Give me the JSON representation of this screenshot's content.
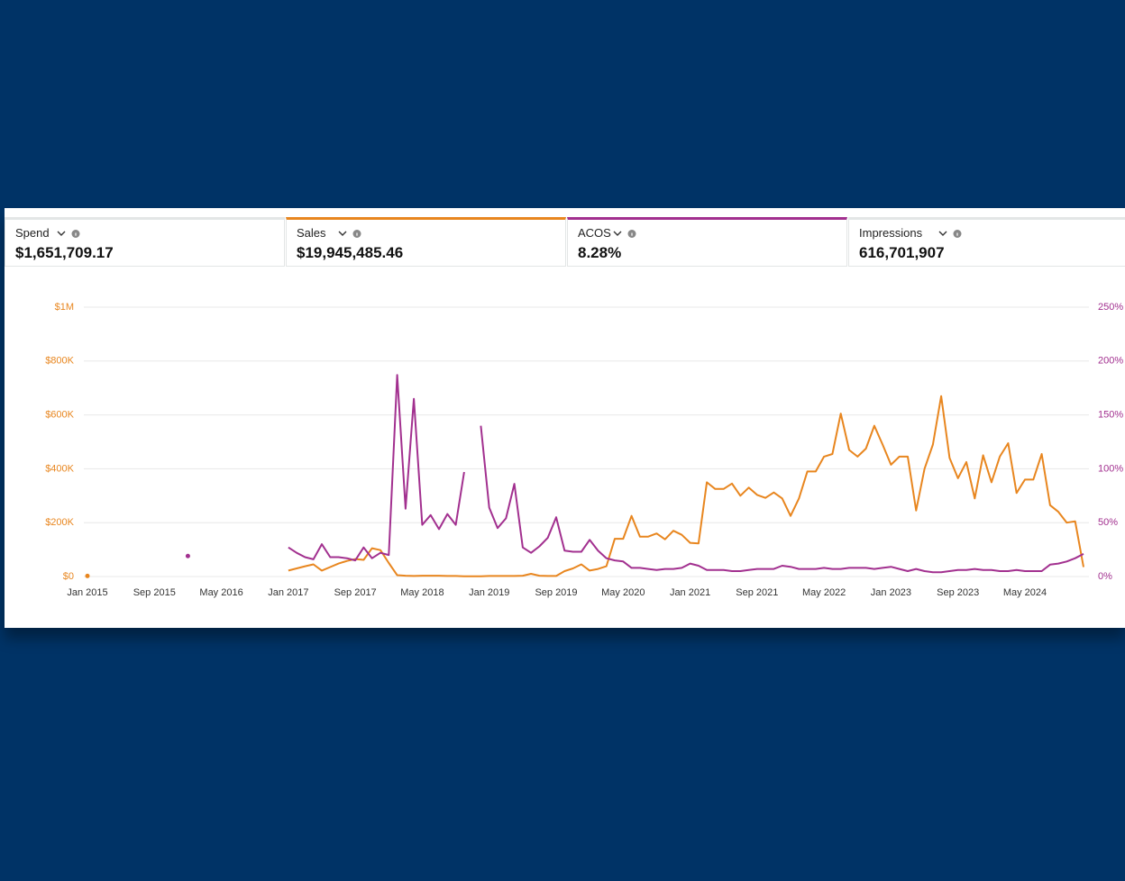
{
  "metrics": [
    {
      "label": "Spend",
      "value": "$1,651,709.17"
    },
    {
      "label": "Sales",
      "value": "$19,945,485.46",
      "color": "#e8861f"
    },
    {
      "label": "ACOS",
      "value": "8.28%",
      "color": "#a2308f"
    },
    {
      "label": "Impressions",
      "value": "616,701,907"
    }
  ],
  "chart_data": {
    "type": "line",
    "categories": [
      "Jan 2015",
      null,
      null,
      null,
      null,
      null,
      null,
      null,
      "Sep 2015",
      null,
      null,
      null,
      null,
      null,
      null,
      null,
      "May 2016",
      null,
      null,
      null,
      null,
      null,
      null,
      null,
      "Jan 2017",
      null,
      null,
      null,
      null,
      null,
      null,
      null,
      "Sep 2017",
      null,
      null,
      null,
      null,
      null,
      null,
      null,
      "May 2018",
      null,
      null,
      null,
      null,
      null,
      null,
      null,
      "Jan 2019",
      null,
      null,
      null,
      null,
      null,
      null,
      null,
      "Sep 2019",
      null,
      null,
      null,
      null,
      null,
      null,
      null,
      "May 2020",
      null,
      null,
      null,
      null,
      null,
      null,
      null,
      "Jan 2021",
      null,
      null,
      null,
      null,
      null,
      null,
      null,
      "Sep 2021",
      null,
      null,
      null,
      null,
      null,
      null,
      null,
      "May 2022",
      null,
      null,
      null,
      null,
      null,
      null,
      null,
      "Jan 2023",
      null,
      null,
      null,
      null,
      null,
      null,
      null,
      "Sep 2023",
      null,
      null,
      null,
      null,
      null,
      null,
      null,
      "May 2024",
      null,
      null,
      null,
      null,
      null,
      null,
      null
    ],
    "series": [
      {
        "name": "Sales",
        "color": "#e8861f",
        "axis": "y",
        "values": [
          2000,
          null,
          null,
          null,
          null,
          null,
          null,
          null,
          null,
          null,
          null,
          null,
          null,
          null,
          null,
          null,
          null,
          null,
          null,
          null,
          null,
          null,
          null,
          null,
          22000,
          30000,
          38000,
          45000,
          22000,
          35000,
          48000,
          58000,
          65000,
          62000,
          105000,
          98000,
          50000,
          5000,
          3000,
          2000,
          3000,
          3000,
          3000,
          2000,
          2000,
          1000,
          1000,
          1000,
          2000,
          2000,
          2000,
          2000,
          3000,
          10000,
          3000,
          2000,
          2000,
          20000,
          30000,
          45000,
          22000,
          28000,
          38000,
          140000,
          140000,
          225000,
          148000,
          148000,
          160000,
          138000,
          170000,
          155000,
          125000,
          123000,
          350000,
          325000,
          325000,
          345000,
          300000,
          330000,
          303000,
          292000,
          312000,
          290000,
          225000,
          290000,
          390000,
          390000,
          445000,
          455000,
          605000,
          470000,
          445000,
          475000,
          560000,
          490000,
          415000,
          445000,
          445000,
          245000,
          400000,
          490000,
          670000,
          440000,
          365000,
          425000,
          290000,
          450000,
          350000,
          445000,
          495000,
          310000,
          360000,
          360000,
          455000,
          265000,
          240000,
          200000,
          205000,
          35000
        ]
      },
      {
        "name": "ACOS",
        "color": "#a2308f",
        "axis": "y2",
        "values": [
          null,
          null,
          null,
          null,
          null,
          null,
          null,
          null,
          null,
          null,
          null,
          null,
          19,
          null,
          null,
          null,
          null,
          null,
          null,
          null,
          null,
          null,
          null,
          null,
          27,
          22,
          18,
          16,
          30,
          18,
          18,
          17,
          15,
          27,
          17,
          22,
          20,
          187,
          63,
          165,
          48,
          57,
          44,
          58,
          48,
          97,
          null,
          140,
          64,
          45,
          54,
          86,
          27,
          22,
          28,
          36,
          55,
          24,
          23,
          23,
          34,
          24,
          17,
          15,
          14,
          8,
          8,
          7,
          6,
          7,
          7,
          8,
          12,
          10,
          6,
          6,
          6,
          5,
          5,
          6,
          7,
          7,
          7,
          10,
          9,
          7,
          7,
          7,
          8,
          7,
          7,
          8,
          8,
          8,
          7,
          8,
          9,
          7,
          5,
          7,
          5,
          4,
          4,
          5,
          6,
          6,
          7,
          6,
          6,
          5,
          5,
          6,
          5,
          5,
          5,
          11,
          12,
          14,
          17,
          21
        ]
      }
    ],
    "ylim": [
      0,
      1000000
    ],
    "yticks": [
      {
        "value": 0,
        "label": "$0"
      },
      {
        "value": 200000,
        "label": "$200K"
      },
      {
        "value": 400000,
        "label": "$400K"
      },
      {
        "value": 600000,
        "label": "$600K"
      },
      {
        "value": 800000,
        "label": "$800K"
      },
      {
        "value": 1000000,
        "label": "$1M"
      }
    ],
    "y2lim": [
      0,
      250
    ],
    "y2ticks": [
      {
        "value": 0,
        "label": "0%"
      },
      {
        "value": 50,
        "label": "50%"
      },
      {
        "value": 100,
        "label": "100%"
      },
      {
        "value": 150,
        "label": "150%"
      },
      {
        "value": 200,
        "label": "200%"
      },
      {
        "value": 250,
        "label": "250%"
      }
    ],
    "grid": true
  }
}
